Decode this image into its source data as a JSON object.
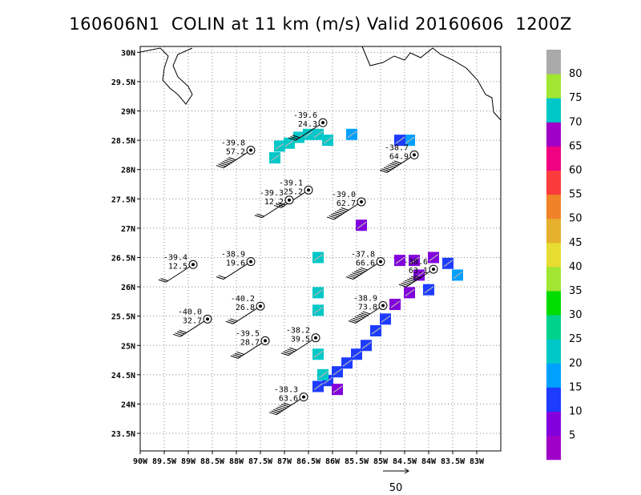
{
  "title": "160606N1  COLIN at 11 km (m/s) Valid 20160606  1200Z",
  "map": {
    "x_axis_labels": [
      "90W",
      "89.5W",
      "89W",
      "88.5W",
      "88W",
      "87.5W",
      "87W",
      "86.5W",
      "86W",
      "85.5W",
      "85W",
      "84.5W",
      "84W",
      "83.5W",
      "83W"
    ],
    "y_axis_labels": [
      "30N",
      "29.5N",
      "29N",
      "28.5N",
      "28N",
      "27.5N",
      "27N",
      "26.5N",
      "26N",
      "25.5N",
      "25N",
      "24.5N",
      "24N",
      "23.5N"
    ],
    "lon_range": [
      -90,
      -82.5
    ],
    "lat_range": [
      23.2,
      30.1
    ],
    "grid": "dotted"
  },
  "colorbar": {
    "labels": [
      "5",
      "10",
      "15",
      "20",
      "25",
      "30",
      "35",
      "40",
      "45",
      "50",
      "55",
      "60",
      "65",
      "70",
      "75",
      "80"
    ],
    "colors": [
      "#a000c8",
      "#8200dc",
      "#1e3cff",
      "#00a0ff",
      "#00c8c8",
      "#00d28c",
      "#00dc00",
      "#a0e632",
      "#e6dc32",
      "#e6af2d",
      "#f08228",
      "#fa3c3c",
      "#f00082",
      "#a000c8",
      "#00c8c8",
      "#a0e632",
      "#aaaaaa"
    ]
  },
  "observations": [
    {
      "lon": -86.2,
      "lat": 28.8,
      "temp": "-39.6",
      "speed": "24.3"
    },
    {
      "lon": -87.7,
      "lat": 28.33,
      "temp": "-39.8",
      "speed": "57.2"
    },
    {
      "lon": -84.3,
      "lat": 28.25,
      "temp": "-38.7",
      "speed": "64.9"
    },
    {
      "lon": -86.5,
      "lat": 27.65,
      "temp": "-39.1",
      "speed": "25.2"
    },
    {
      "lon": -86.9,
      "lat": 27.48,
      "temp": "-39.3",
      "speed": "12.2"
    },
    {
      "lon": -85.4,
      "lat": 27.45,
      "temp": "-39.0",
      "speed": "62.7"
    },
    {
      "lon": -88.9,
      "lat": 26.38,
      "temp": "-39.4",
      "speed": "12.5"
    },
    {
      "lon": -87.7,
      "lat": 26.43,
      "temp": "-38.9",
      "speed": "19.6"
    },
    {
      "lon": -85.0,
      "lat": 26.43,
      "temp": "-37.8",
      "speed": "66.6"
    },
    {
      "lon": -83.9,
      "lat": 26.3,
      "temp": "-38.6",
      "speed": "63.1"
    },
    {
      "lon": -87.5,
      "lat": 25.67,
      "temp": "-40.2",
      "speed": "26.8"
    },
    {
      "lon": -84.95,
      "lat": 25.68,
      "temp": "-38.9",
      "speed": "73.8"
    },
    {
      "lon": -88.6,
      "lat": 25.45,
      "temp": "-40.0",
      "speed": "32.7"
    },
    {
      "lon": -87.4,
      "lat": 25.08,
      "temp": "-39.5",
      "speed": "28.7"
    },
    {
      "lon": -86.35,
      "lat": 25.13,
      "temp": "-38.2",
      "speed": "39.5"
    },
    {
      "lon": -86.6,
      "lat": 24.12,
      "temp": "-38.3",
      "speed": "63.6"
    }
  ],
  "wind_cells": [
    {
      "lon": -87.1,
      "lat": 28.4,
      "speed": 22
    },
    {
      "lon": -86.9,
      "lat": 28.45,
      "speed": 22
    },
    {
      "lon": -86.7,
      "lat": 28.55,
      "speed": 20
    },
    {
      "lon": -86.5,
      "lat": 28.6,
      "speed": 20
    },
    {
      "lon": -86.3,
      "lat": 28.6,
      "speed": 22
    },
    {
      "lon": -86.1,
      "lat": 28.5,
      "speed": 20
    },
    {
      "lon": -87.2,
      "lat": 28.2,
      "speed": 22
    },
    {
      "lon": -85.6,
      "lat": 28.6,
      "speed": 17
    },
    {
      "lon": -84.4,
      "lat": 28.5,
      "speed": 15
    },
    {
      "lon": -84.6,
      "lat": 28.5,
      "speed": 10
    },
    {
      "lon": -85.4,
      "lat": 27.05,
      "speed": 6
    },
    {
      "lon": -86.3,
      "lat": 26.5,
      "speed": 20
    },
    {
      "lon": -86.3,
      "lat": 25.9,
      "speed": 20
    },
    {
      "lon": -86.3,
      "lat": 25.6,
      "speed": 20
    },
    {
      "lon": -84.6,
      "lat": 26.45,
      "speed": 6
    },
    {
      "lon": -84.3,
      "lat": 26.45,
      "speed": 6
    },
    {
      "lon": -83.9,
      "lat": 26.5,
      "speed": 6
    },
    {
      "lon": -83.6,
      "lat": 26.4,
      "speed": 12
    },
    {
      "lon": -83.4,
      "lat": 26.2,
      "speed": 15
    },
    {
      "lon": -84.2,
      "lat": 26.2,
      "speed": 6
    },
    {
      "lon": -84.0,
      "lat": 25.95,
      "speed": 10
    },
    {
      "lon": -84.4,
      "lat": 25.9,
      "speed": 6
    },
    {
      "lon": -84.7,
      "lat": 25.7,
      "speed": 6
    },
    {
      "lon": -84.9,
      "lat": 25.45,
      "speed": 12
    },
    {
      "lon": -85.1,
      "lat": 25.25,
      "speed": 10
    },
    {
      "lon": -85.3,
      "lat": 25.0,
      "speed": 12
    },
    {
      "lon": -85.5,
      "lat": 24.85,
      "speed": 10
    },
    {
      "lon": -85.7,
      "lat": 24.7,
      "speed": 12
    },
    {
      "lon": -85.9,
      "lat": 24.55,
      "speed": 10
    },
    {
      "lon": -86.1,
      "lat": 24.4,
      "speed": 12
    },
    {
      "lon": -86.3,
      "lat": 24.85,
      "speed": 20
    },
    {
      "lon": -86.2,
      "lat": 24.5,
      "speed": 20
    },
    {
      "lon": -85.9,
      "lat": 24.25,
      "speed": 6
    },
    {
      "lon": -86.3,
      "lat": 24.3,
      "speed": 10
    }
  ],
  "scale_arrow": {
    "label": "50"
  }
}
